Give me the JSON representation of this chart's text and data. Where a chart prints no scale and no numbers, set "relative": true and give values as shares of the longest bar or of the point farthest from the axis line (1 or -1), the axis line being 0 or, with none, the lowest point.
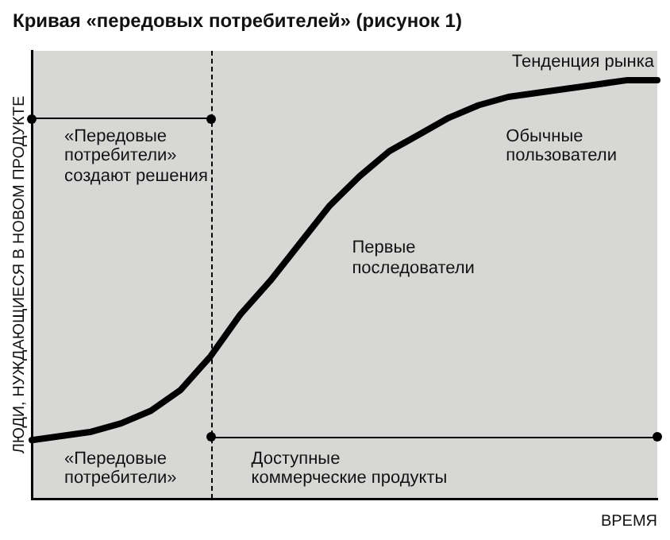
{
  "chart_data": {
    "type": "line",
    "title": "Кривая «передовых потребителей» (рисунок 1)",
    "xlabel": "ВРЕМЯ",
    "ylabel": "ЛЮДИ, НУЖДАЮЩИЕСЯ В НОВОМ ПРОДУКТЕ",
    "relative": true,
    "tick_labels": false,
    "grid": false,
    "legend": false,
    "marker": "none",
    "line_style": "solid",
    "categories": [
      null,
      null,
      null,
      null,
      null,
      null,
      null,
      null,
      null,
      null,
      null,
      null,
      null,
      null,
      null,
      null,
      null,
      null,
      null,
      null,
      null,
      null
    ],
    "series": [
      {
        "name": "Тенденция рынка",
        "color": "#000000",
        "values": [
          0.14,
          0.15,
          0.16,
          0.18,
          0.21,
          0.26,
          0.34,
          0.44,
          0.52,
          0.61,
          0.7,
          0.77,
          0.83,
          0.87,
          0.91,
          0.94,
          0.96,
          0.97,
          0.98,
          0.99,
          1.0,
          1.0
        ]
      }
    ],
    "annotations": [
      "«Передовые\nпотребители»\nсоздают решения",
      "Обычные\nпользователи",
      "Первые\nпоследователи",
      "«Передовые\nпотребители»",
      "Доступные\nкоммерческие продукты"
    ]
  }
}
